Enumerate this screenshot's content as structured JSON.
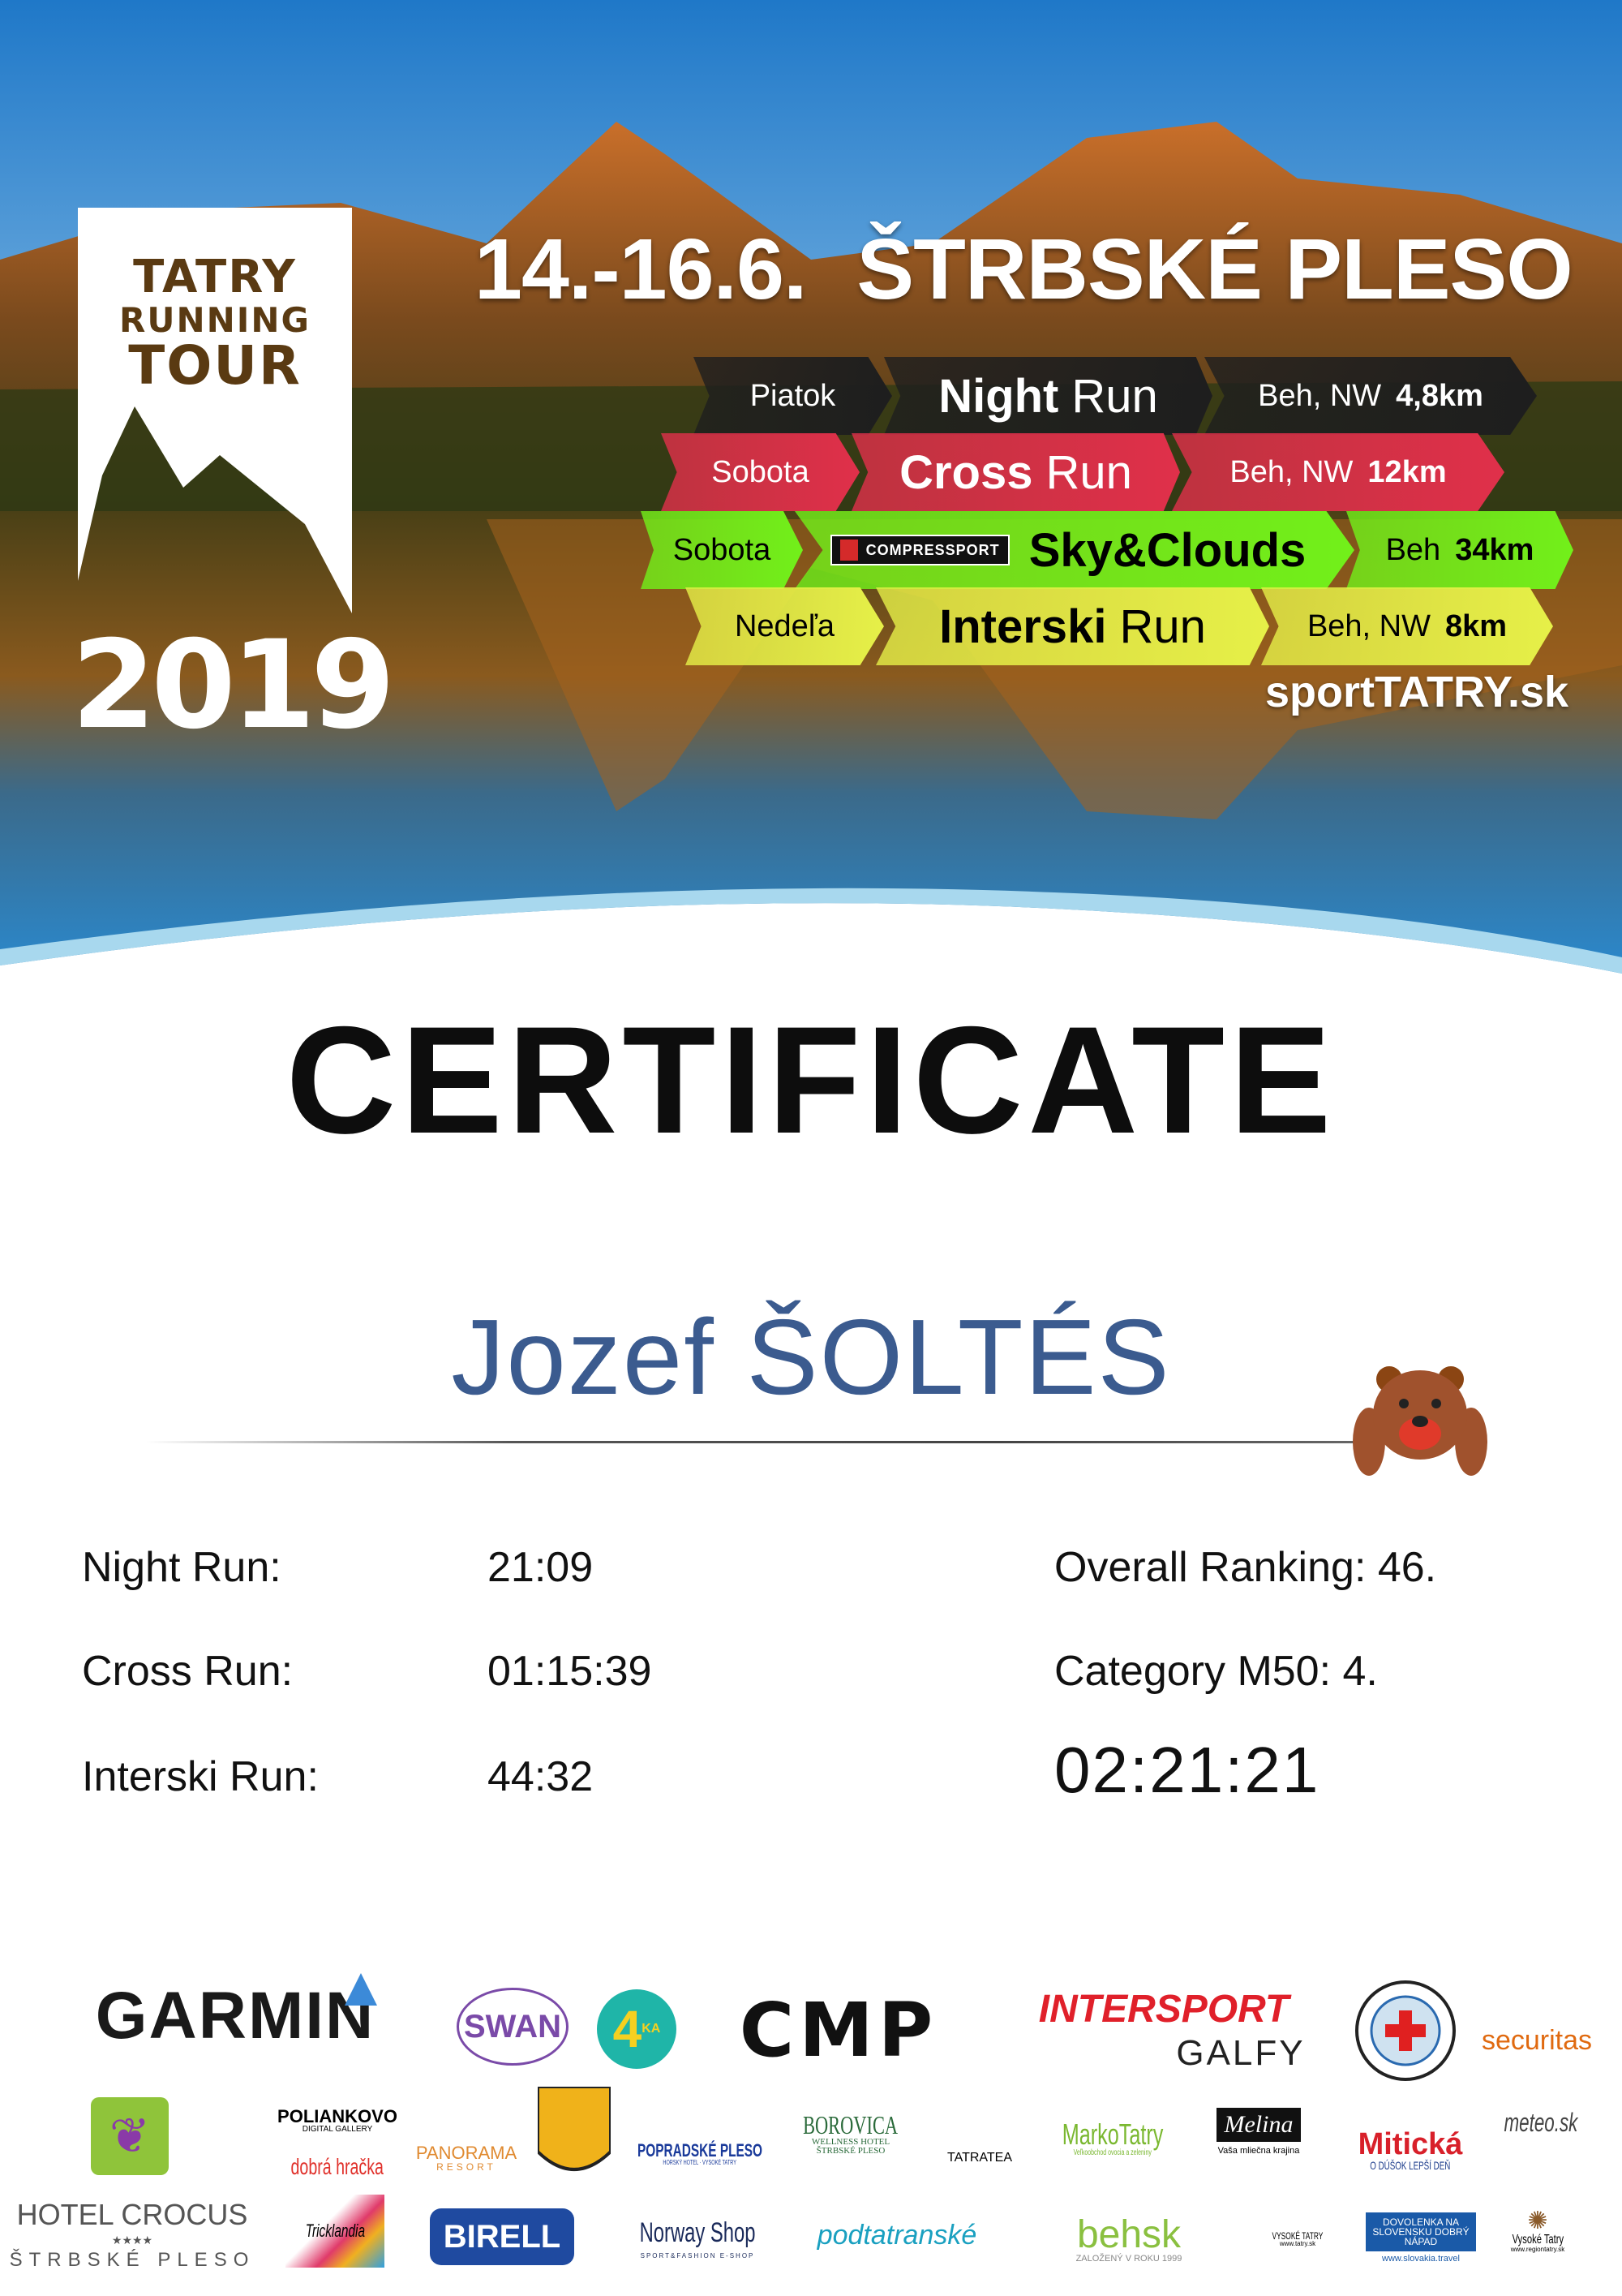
{
  "event": {
    "logo": {
      "line1": "TATRY",
      "line2": "RUNNING",
      "line3": "TOUR",
      "year": "2019"
    },
    "dates": "14.-16.6.",
    "location": "ŠTRBSKÉ PLESO",
    "website": "sportTATRY.sk",
    "races": [
      {
        "day": "Piatok",
        "name_bold": "Night",
        "name_light": "Run",
        "type": "Beh, NW",
        "distance": "4,8km",
        "color": "#1e1e1e",
        "text_color": "#ffffff"
      },
      {
        "day": "Sobota",
        "name_bold": "Cross",
        "name_light": "Run",
        "type": "Beh, NW",
        "distance": "12km",
        "color": "#e0304a",
        "text_color": "#ffffff"
      },
      {
        "day": "Sobota",
        "sponsor": "COMPRESSPORT",
        "name_bold": "Sky&Clouds",
        "name_light": "",
        "type": "Beh",
        "distance": "34km",
        "color": "#72f01a",
        "text_color": "#000000"
      },
      {
        "day": "Nedeľa",
        "name_bold": "Interski",
        "name_light": "Run",
        "type": "Beh, NW",
        "distance": "8km",
        "color": "#e6f048",
        "text_color": "#000000"
      }
    ]
  },
  "certificate": {
    "title": "CERTIFICATE",
    "participant": "Jozef ŠOLTÉS",
    "name_color": "#3b5b8f",
    "results": [
      {
        "label": "Night Run:",
        "time": "21:09"
      },
      {
        "label": "Cross Run:",
        "time": "01:15:39"
      },
      {
        "label": "Interski Run:",
        "time": "44:32"
      }
    ],
    "overall_ranking": "Overall Ranking: 46.",
    "category_ranking": "Category M50: 4.",
    "total_time": "02:21:21"
  },
  "sponsors": {
    "garmin": "GARMIN",
    "swan": "SWAN",
    "4ka": "4",
    "4ka_sup": "KA",
    "cmp": "CMP",
    "intersport": "INTERSPORT",
    "galfy": "GALFY",
    "securitas": "securitas",
    "polliankovo": "POLIANKOVO",
    "polliankovo_sub": "DIGITAL GALLERY",
    "dobra_hracka": "dobrá hračka",
    "panorama": "PANORAMA",
    "panorama_sub": "RESORT",
    "popradske": "POPRADSKÉ PLESO",
    "popradske_sub": "HORSKÝ HOTEL · VYSOKÉ TATRY",
    "borovica": "BOROVICA",
    "borovica_sub": "WELLNESS HOTEL ŠTRBSKÉ PLESO",
    "tatratea": "TATRATEA",
    "markotatry": "MarkoTatry",
    "markotatry_sub": "Veľkoobchod ovocia a zeleniny",
    "melina": "Melina",
    "melina_sub": "Vaša mliečna krajina",
    "miticka": "Mitická",
    "miticka_sub": "O DÚŠOK LEPŠÍ DEŇ",
    "meteo": "meteo.sk",
    "crocus": "HOTEL CROCUS",
    "crocus_stars": "★★★★",
    "crocus_sub": "ŠTRBSKÉ PLESO",
    "tricklandia": "Tricklandia",
    "birell": "BIRELL",
    "norway": "Norway Shop",
    "norway_sub": "SPORT&FASHION E-SHOP",
    "podtatranske": "podtatranské",
    "behsk": "behsk",
    "behsk_sub": "ZALOŽENÝ V ROKU 1999",
    "vt": "VYSOKÉ TATRY",
    "vt_sub": "www.tatry.sk",
    "slovakia": "DOVOLENKA NA SLOVENSKU DOBRÝ NÁPAD",
    "slovakia_sub": "www.slovakia.travel",
    "region": "Vysoké Tatry",
    "region_sub": "www.regiontatry.sk"
  }
}
